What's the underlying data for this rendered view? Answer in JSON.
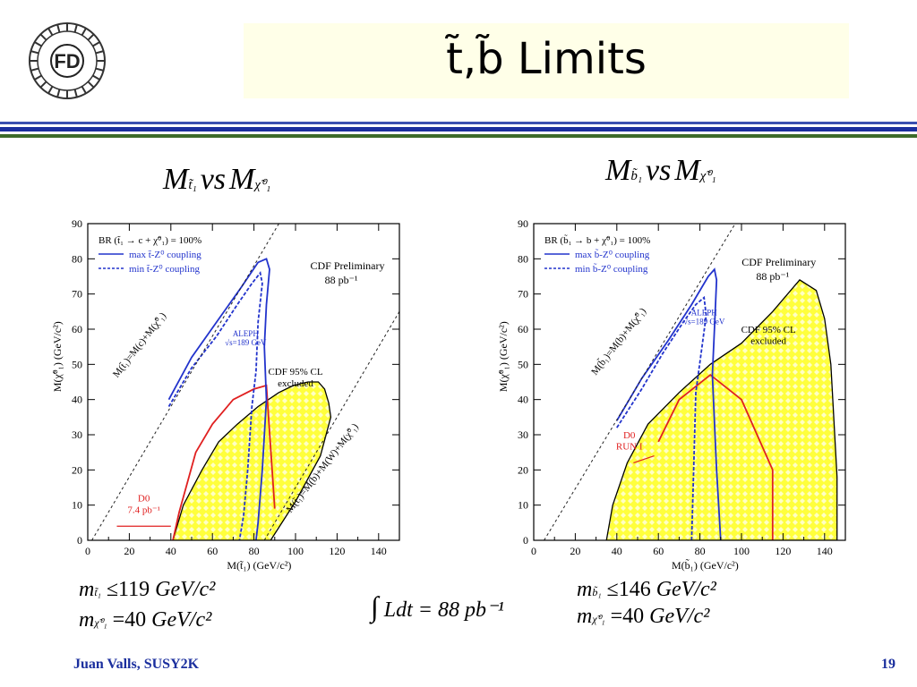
{
  "slide": {
    "title": "t̃,b̃ Limits",
    "footer_left": "Juan Valls, SUSY2K",
    "page_number": "19",
    "accent_blue": "#1b2f9e",
    "accent_green": "#3d6b2a",
    "title_bg": "#ffffe8"
  },
  "logo": {
    "text": "FD",
    "icon": "fermilab-d0-wheel-logo"
  },
  "left_heading": {
    "m1": "M",
    "sub1": "t̃₁",
    "vs": "vs",
    "m2": "M",
    "sub2": "χ̃⁰₁"
  },
  "right_heading": {
    "m1": "M",
    "sub1": "b̃₁",
    "vs": "vs",
    "m2": "M",
    "sub2": "χ̃⁰₁"
  },
  "integral": {
    "sign": "∫",
    "text": "Ldt = 88 pb⁻¹"
  },
  "left_formula": {
    "line1": {
      "m": "m",
      "sub": "t̃₁",
      "rel": "≤",
      "val": "119",
      "unit": "GeV/c²"
    },
    "line2": {
      "m": "m",
      "sub": "χ̃⁰₁",
      "rel": "=",
      "val": "40",
      "unit": "GeV/c²"
    }
  },
  "right_formula": {
    "line1": {
      "m": "m",
      "sub": "b̃₁",
      "rel": "≤",
      "val": "146",
      "unit": "GeV/c²"
    },
    "line2": {
      "m": "m",
      "sub": "χ̃⁰₁",
      "rel": "=",
      "val": "40",
      "unit": "GeV/c²"
    }
  },
  "chart_data": [
    {
      "type": "area",
      "xlabel": "M(t̃₁) (GeV/c²)",
      "ylabel": "M(χ̃⁰₁) (GeV/c²)",
      "xlim": [
        0,
        150
      ],
      "ylim": [
        0,
        90
      ],
      "xticks": [
        0,
        20,
        40,
        60,
        80,
        100,
        120,
        140
      ],
      "yticks": [
        0,
        10,
        20,
        30,
        40,
        50,
        60,
        70,
        80,
        90
      ],
      "excluded_color": "#ffff3c",
      "legend": {
        "header": "BR (t̃₁ → c + χ̃⁰₁) = 100%",
        "entries": [
          {
            "label": "max t̃-Z⁰ coupling",
            "color": "#2233cc",
            "style": "solid"
          },
          {
            "label": "min t̃-Z⁰ coupling",
            "color": "#2233cc",
            "style": "dashed"
          }
        ]
      },
      "annotations": {
        "cdf_preliminary": "CDF Preliminary",
        "luminosity": "88 pb⁻¹",
        "excluded": "CDF 95% CL\nexcluded",
        "aleph": "ALEPH\n√s=189 GeV",
        "d0": "D0\n7.4 pb⁻¹",
        "line_upper": "M(t̃₁)=M(c)+M(χ̃⁰₁)",
        "line_lower": "M(t̃₁)=M(b)+M(W)+M(χ̃⁰₁)"
      },
      "series": [
        {
          "name": "CDF 95% CL excluded",
          "kind": "region",
          "x": [
            41,
            46,
            55,
            63,
            72,
            82,
            92,
            99,
            106,
            111,
            114,
            116,
            117,
            112,
            100,
            88,
            72,
            57,
            45
          ],
          "y": [
            0,
            10,
            20,
            28,
            33,
            38,
            42,
            44,
            45,
            45,
            43,
            39,
            35,
            24,
            11,
            0,
            0,
            0,
            0
          ]
        },
        {
          "name": "D0 excluded",
          "color": "#e02020",
          "x": [
            41,
            44,
            52,
            60,
            70,
            80,
            86,
            90
          ],
          "y": [
            0,
            8,
            25,
            33,
            40,
            43,
            44,
            9
          ]
        },
        {
          "name": "ALEPH max t̃-Z⁰ coupling",
          "color": "#2233cc",
          "dash": false,
          "x": [
            39,
            50,
            62,
            74,
            82,
            86,
            87.5,
            86,
            85,
            86,
            84,
            82,
            81
          ],
          "y": [
            40,
            52,
            62,
            72,
            79,
            80,
            77,
            67,
            55,
            40,
            20,
            5,
            0
          ]
        },
        {
          "name": "ALEPH min t̃-Z⁰ coupling",
          "color": "#2233cc",
          "dash": true,
          "x": [
            39,
            50,
            62,
            72,
            79,
            83,
            84,
            82,
            81,
            79,
            77,
            75,
            73
          ],
          "y": [
            38,
            49,
            58,
            67,
            73,
            76,
            73,
            62,
            48,
            38,
            20,
            7,
            0
          ]
        },
        {
          "name": "M(t̃₁)=M(c)+M(χ̃⁰₁)",
          "color": "#222222",
          "dash": true,
          "x": [
            2,
            92
          ],
          "y": [
            0,
            90
          ]
        },
        {
          "name": "M(t̃₁)=M(b)+M(W)+M(χ̃⁰₁)",
          "color": "#222222",
          "dash": true,
          "x": [
            85,
            150
          ],
          "y": [
            0,
            65
          ]
        }
      ]
    },
    {
      "type": "area",
      "xlabel": "M(b̃₁) (GeV/c²)",
      "ylabel": "M(χ̃⁰₁) (GeV/c²)",
      "xlim": [
        0,
        150
      ],
      "ylim": [
        0,
        90
      ],
      "xticks": [
        0,
        20,
        40,
        60,
        80,
        100,
        120,
        140
      ],
      "yticks": [
        0,
        10,
        20,
        30,
        40,
        50,
        60,
        70,
        80,
        90
      ],
      "excluded_color": "#ffff3c",
      "legend": {
        "header": "BR (b̃₁ → b + χ̃⁰₁) = 100%",
        "entries": [
          {
            "label": "max b̃-Z⁰ coupling",
            "color": "#2233cc",
            "style": "solid"
          },
          {
            "label": "min b̃-Z⁰ coupling",
            "color": "#2233cc",
            "style": "dashed"
          }
        ]
      },
      "annotations": {
        "cdf_preliminary": "CDF Preliminary",
        "luminosity": "88 pb⁻¹",
        "excluded": "CDF 95% CL\nexcluded",
        "aleph": "ALEPH\n√s=189 GeV",
        "d0": "D0\nRUN I",
        "line_upper": "M(b̃₁)=M(b)+M(χ̃⁰₁)"
      },
      "series": [
        {
          "name": "CDF 95% CL excluded",
          "kind": "region",
          "x": [
            35,
            38,
            45,
            55,
            70,
            85,
            100,
            115,
            128,
            136,
            140,
            143,
            146,
            146,
            35
          ],
          "y": [
            0,
            10,
            22,
            33,
            42,
            50,
            56,
            65,
            74,
            71,
            63,
            50,
            18,
            0,
            0
          ]
        },
        {
          "name": "D0 RUN I",
          "color": "#e02020",
          "x": [
            60,
            70,
            85,
            100,
            115,
            115
          ],
          "y": [
            28,
            40,
            47,
            40,
            20,
            0
          ]
        },
        {
          "name": "ALEPH max b̃-Z⁰ coupling",
          "color": "#2233cc",
          "dash": false,
          "x": [
            40,
            52,
            65,
            76,
            84,
            87,
            88,
            87,
            86,
            88,
            90
          ],
          "y": [
            34,
            46,
            57,
            67,
            75,
            77,
            74,
            60,
            47,
            20,
            0
          ]
        },
        {
          "name": "ALEPH min b̃-Z⁰ coupling",
          "color": "#2233cc",
          "dash": true,
          "x": [
            40,
            52,
            62,
            72,
            78,
            82,
            83,
            81,
            78,
            77,
            76
          ],
          "y": [
            32,
            43,
            53,
            62,
            67,
            69,
            64,
            55,
            42,
            20,
            0
          ]
        },
        {
          "name": "M(b̃₁)=M(b)+M(χ̃⁰₁)",
          "color": "#222222",
          "dash": true,
          "x": [
            5,
            97
          ],
          "y": [
            0,
            90
          ]
        }
      ]
    }
  ]
}
